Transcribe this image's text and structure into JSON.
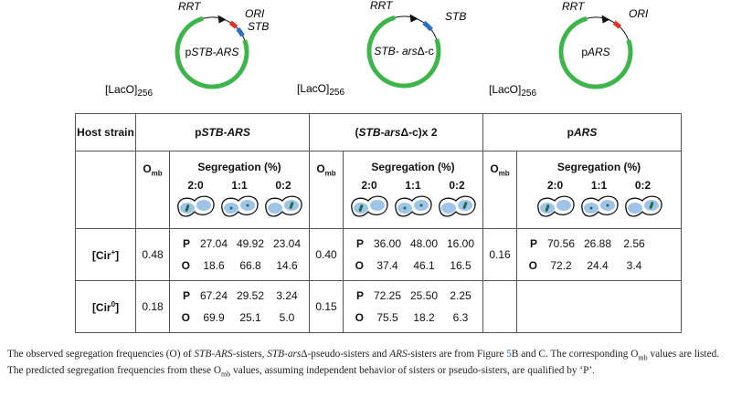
{
  "plasmids": [
    {
      "rrt": "RRT",
      "ori": "ORI",
      "stb": "STB",
      "name": [
        {
          "text": "p"
        },
        {
          "text": "STB-ARS",
          "italic": true
        }
      ],
      "laco": "[LacO]",
      "laco_sub": "256"
    },
    {
      "rrt": "RRT",
      "stb": "STB",
      "name": [
        {
          "text": "STB- ars",
          "italic": true
        },
        {
          "text": "Δ-c"
        }
      ],
      "laco": "[LacO]",
      "laco_sub": "256"
    },
    {
      "rrt": "RRT",
      "ori": "ORI",
      "name": [
        {
          "text": "p"
        },
        {
          "text": "ARS",
          "italic": true
        }
      ],
      "laco": "[LacO]",
      "laco_sub": "256"
    }
  ],
  "table": {
    "host": "Host strain",
    "groups": [
      [
        {
          "text": "p"
        },
        {
          "text": "STB-ARS",
          "italic": true
        }
      ],
      [
        {
          "text": "("
        },
        {
          "text": "STB-ars",
          "italic": true
        },
        {
          "text": "Δ-c)x 2"
        }
      ],
      [
        {
          "text": "p"
        },
        {
          "text": "ARS",
          "italic": true
        }
      ]
    ],
    "omb": [
      {
        "text": "O"
      },
      {
        "text": "mb",
        "sub": true
      }
    ],
    "segregation": "Segregation (%)",
    "ratios": [
      "2:0",
      "1:1",
      "0:2"
    ],
    "row_keys": [
      "P",
      "O"
    ],
    "rows": [
      {
        "strain": [
          {
            "text": "[Cir"
          },
          {
            "text": "+",
            "sup": true
          },
          {
            "text": "]"
          }
        ],
        "groups": [
          {
            "omb": "0.48",
            "P": [
              "27.04",
              "49.92",
              "23.04"
            ],
            "O": [
              "18.6",
              "66.8",
              "14.6"
            ]
          },
          {
            "omb": "0.40",
            "P": [
              "36.00",
              "48.00",
              "16.00"
            ],
            "O": [
              "37.4",
              "46.1",
              "16.5"
            ]
          },
          {
            "omb": "0.16",
            "P": [
              "70.56",
              "26.88",
              "2.56"
            ],
            "O": [
              "72.2",
              "24.4",
              "3.4"
            ]
          }
        ]
      },
      {
        "strain": [
          {
            "text": "[Cir"
          },
          {
            "text": "0",
            "sup": true
          },
          {
            "text": "]"
          }
        ],
        "groups": [
          {
            "omb": "0.18",
            "P": [
              "67.24",
              "29.52",
              "3.24"
            ],
            "O": [
              "69.9",
              "25.1",
              "5.0"
            ]
          },
          {
            "omb": "0.15",
            "P": [
              "72.25",
              "25.50",
              "2.25"
            ],
            "O": [
              "75.5",
              "18.2",
              "6.3"
            ]
          }
        ]
      }
    ]
  },
  "caption": [
    {
      "text": "The observed segregation frequencies (O) of "
    },
    {
      "text": "STB-ARS",
      "italic": true
    },
    {
      "text": "-sisters, "
    },
    {
      "text": "STB-ars",
      "italic": true
    },
    {
      "text": "Δ-pseudo-sisters and "
    },
    {
      "text": "ARS",
      "italic": true
    },
    {
      "text": "-sisters are from Figure "
    },
    {
      "text": "5",
      "link": true
    },
    {
      "text": "B and C. The corresponding "
    },
    {
      "text": "O"
    },
    {
      "text": "mb",
      "sub": true
    },
    {
      "text": " values are listed. The predicted segregation frequencies from these O"
    },
    {
      "text": "mb",
      "sub": true
    },
    {
      "text": " values, assuming independent behavior of sisters or pseudo-sisters, are qualified by ‘P’."
    }
  ]
}
